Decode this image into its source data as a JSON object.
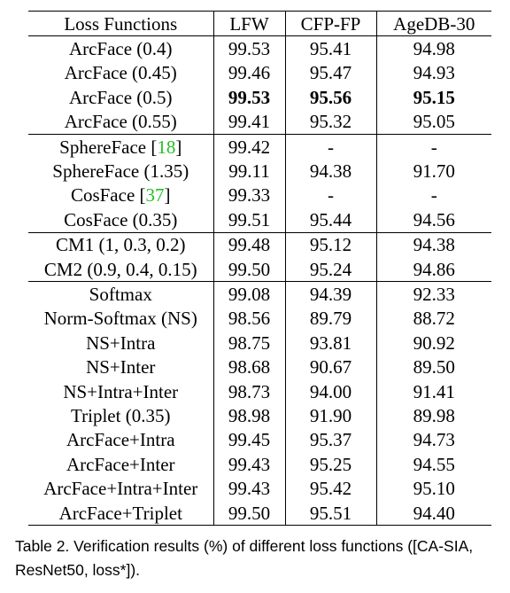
{
  "table": {
    "headers": [
      "Loss Functions",
      "LFW",
      "CFP-FP",
      "AgeDB-30"
    ],
    "groups": [
      [
        {
          "name": "ArcFace (0.4)",
          "lfw": "99.53",
          "cfp": "95.41",
          "agedb": "94.98"
        },
        {
          "name": "ArcFace (0.45)",
          "lfw": "99.46",
          "cfp": "95.47",
          "agedb": "94.93"
        },
        {
          "name": "ArcFace (0.5)",
          "lfw": "99.53",
          "cfp": "95.56",
          "agedb": "95.15",
          "bold": true
        },
        {
          "name": "ArcFace (0.55)",
          "lfw": "99.41",
          "cfp": "95.32",
          "agedb": "95.05"
        }
      ],
      [
        {
          "name": "SphereFace",
          "cite": "18",
          "lfw": "99.42",
          "cfp": "-",
          "agedb": "-"
        },
        {
          "name": "SphereFace (1.35)",
          "lfw": "99.11",
          "cfp": "94.38",
          "agedb": "91.70"
        },
        {
          "name": "CosFace",
          "cite": "37",
          "lfw": "99.33",
          "cfp": "-",
          "agedb": "-"
        },
        {
          "name": "CosFace (0.35)",
          "lfw": "99.51",
          "cfp": "95.44",
          "agedb": "94.56"
        }
      ],
      [
        {
          "name": "CM1 (1, 0.3, 0.2)",
          "lfw": "99.48",
          "cfp": "95.12",
          "agedb": "94.38"
        },
        {
          "name": "CM2 (0.9, 0.4, 0.15)",
          "lfw": "99.50",
          "cfp": "95.24",
          "agedb": "94.86"
        }
      ],
      [
        {
          "name": "Softmax",
          "lfw": "99.08",
          "cfp": "94.39",
          "agedb": "92.33"
        },
        {
          "name": "Norm-Softmax (NS)",
          "lfw": "98.56",
          "cfp": "89.79",
          "agedb": "88.72"
        },
        {
          "name": "NS+Intra",
          "lfw": "98.75",
          "cfp": "93.81",
          "agedb": "90.92"
        },
        {
          "name": "NS+Inter",
          "lfw": "98.68",
          "cfp": "90.67",
          "agedb": "89.50"
        },
        {
          "name": "NS+Intra+Inter",
          "lfw": "98.73",
          "cfp": "94.00",
          "agedb": "91.41"
        },
        {
          "name": "Triplet (0.35)",
          "lfw": "98.98",
          "cfp": "91.90",
          "agedb": "89.98"
        },
        {
          "name": "ArcFace+Intra",
          "lfw": "99.45",
          "cfp": "95.37",
          "agedb": "94.73"
        },
        {
          "name": "ArcFace+Inter",
          "lfw": "99.43",
          "cfp": "95.25",
          "agedb": "94.55"
        },
        {
          "name": "ArcFace+Intra+Inter",
          "lfw": "99.43",
          "cfp": "95.42",
          "agedb": "95.10"
        },
        {
          "name": "ArcFace+Triplet",
          "lfw": "99.50",
          "cfp": "95.51",
          "agedb": "94.40"
        }
      ]
    ]
  },
  "caption": {
    "text": "Table 2. Verification results (%) of different loss functions ([CA-SIA, ResNet50, loss*])."
  },
  "colors": {
    "citation": "#22c022"
  }
}
